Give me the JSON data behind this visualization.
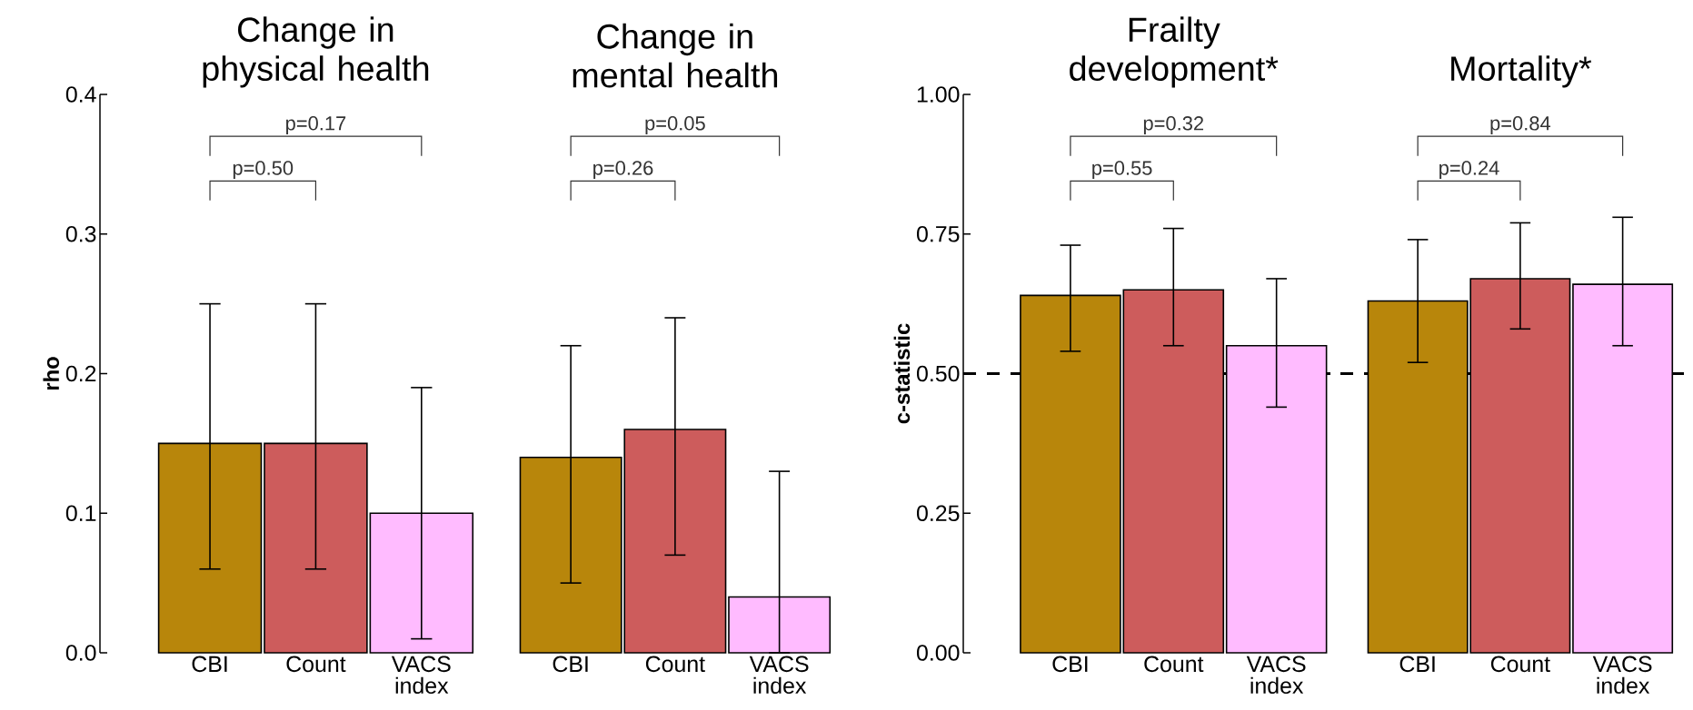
{
  "chart_data": [
    {
      "type": "bar",
      "title": "Change in physical health",
      "ylabel": "rho",
      "categories": [
        "CBI",
        "Count",
        "VACS index"
      ],
      "values": [
        0.15,
        0.15,
        0.1
      ],
      "colors": [
        "#b8860b",
        "#cd5c5c",
        "#ffbbff"
      ],
      "errors": [
        [
          0.06,
          0.25
        ],
        [
          0.06,
          0.25
        ],
        [
          0.01,
          0.19
        ]
      ],
      "ylim": [
        0,
        0.4
      ],
      "yticks": [
        {
          "value": 0,
          "label": "0.0"
        },
        {
          "value": 0.1,
          "label": "0.1"
        },
        {
          "value": 0.2,
          "label": "0.2"
        },
        {
          "value": 0.3,
          "label": "0.3"
        },
        {
          "value": 0.4,
          "label": "0.4"
        }
      ],
      "annotations": [
        "p=0.17",
        "p=0.50"
      ]
    },
    {
      "type": "bar",
      "title": "Change in mental health",
      "categories": [
        "CBI",
        "Count",
        "VACS index"
      ],
      "values": [
        0.14,
        0.16,
        0.04
      ],
      "colors": [
        "#b8860b",
        "#cd5c5c",
        "#ffbbff"
      ],
      "errors": [
        [
          0.05,
          0.22
        ],
        [
          0.07,
          0.24
        ],
        [
          0.0,
          0.13
        ]
      ],
      "ylim": [
        0,
        0.4
      ],
      "tick_labels": "x",
      "annotations": [
        "p=0.05",
        "p=0.26"
      ]
    },
    {
      "type": "bar",
      "title": "Frailty development*",
      "ylabel": "c-statistic",
      "categories": [
        "CBI",
        "Count",
        "VACS index"
      ],
      "values": [
        0.64,
        0.65,
        0.55
      ],
      "colors": [
        "#b8860b",
        "#cd5c5c",
        "#ffbbff"
      ],
      "errors": [
        [
          0.54,
          0.73
        ],
        [
          0.55,
          0.76
        ],
        [
          0.44,
          0.67
        ]
      ],
      "ylim": [
        0,
        1
      ],
      "yticks": [
        {
          "value": 0,
          "label": "0.00"
        },
        {
          "value": 0.25,
          "label": "0.25"
        },
        {
          "value": 0.5,
          "label": "0.50"
        },
        {
          "value": 0.75,
          "label": "0.75"
        },
        {
          "value": 1,
          "label": "1.00"
        }
      ],
      "ref_lines": [
        {
          "axis": "y",
          "value": 0.5,
          "color": "#000000",
          "line_style": "dashed"
        }
      ],
      "annotations": [
        "p=0.32",
        "p=0.55"
      ]
    },
    {
      "type": "bar",
      "title": "Mortality*",
      "categories": [
        "CBI",
        "Count",
        "VACS index"
      ],
      "values": [
        0.63,
        0.67,
        0.66
      ],
      "colors": [
        "#b8860b",
        "#cd5c5c",
        "#ffbbff"
      ],
      "errors": [
        [
          0.52,
          0.74
        ],
        [
          0.58,
          0.77
        ],
        [
          0.55,
          0.78
        ]
      ],
      "ylim": [
        0,
        1
      ],
      "tick_labels": "x",
      "ref_lines": [
        {
          "axis": "y",
          "value": 0.5,
          "color": "#000000",
          "line_style": "dashed"
        }
      ],
      "annotations": [
        "p=0.84",
        "p=0.24"
      ]
    }
  ]
}
